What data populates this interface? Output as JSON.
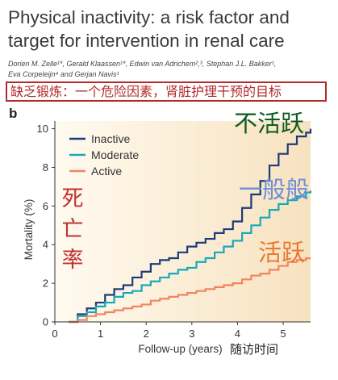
{
  "title": {
    "line1": "Physical inactivity: a risk factor and",
    "line2": "target for intervention in renal care"
  },
  "authors": {
    "line1": "Dorien M. Zelle¹*, Gerald Klaassen¹*, Edwin van Adrichem²,³, Stephan J.L. Bakker¹,",
    "line2": "Eva Corpeleijn⁴ and Gerjan Navis¹"
  },
  "banner_cn": "缺乏锻炼：一个危险因素，肾脏护理干预的目标",
  "panel_letter": "b",
  "annotations": {
    "inactive_cn": "不活跃",
    "moderate_cn": "一般般",
    "active_cn": "活跃",
    "mortality_cn": [
      "死",
      "亡",
      "率"
    ],
    "followup_cn": "随访时间"
  },
  "colors": {
    "inactive": "#1c3b7a",
    "moderate": "#18a9b8",
    "active": "#f08462",
    "plot_bg_left": "#fffaf0",
    "plot_bg_right": "#f7e2bf",
    "banner_border": "#b22a2a"
  },
  "chart_data": {
    "type": "line",
    "xlabel": "Follow-up (years)",
    "ylabel": "Mortality (%)",
    "xlim": [
      0,
      5.6
    ],
    "ylim": [
      0,
      10.4
    ],
    "xticks": [
      0,
      1,
      2,
      3,
      4,
      5
    ],
    "yticks": [
      0,
      2,
      4,
      6,
      8,
      10
    ],
    "grid": false,
    "legend_position": "top-left",
    "series": [
      {
        "name": "Inactive",
        "x": [
          0.3,
          0.5,
          0.7,
          0.9,
          1.1,
          1.3,
          1.5,
          1.7,
          1.9,
          2.1,
          2.3,
          2.5,
          2.7,
          2.9,
          3.1,
          3.3,
          3.5,
          3.7,
          3.9,
          4.1,
          4.3,
          4.5,
          4.7,
          4.9,
          5.1,
          5.3,
          5.5,
          5.6
        ],
        "y": [
          0.0,
          0.4,
          0.7,
          1.0,
          1.4,
          1.7,
          1.9,
          2.3,
          2.6,
          3.0,
          3.2,
          3.3,
          3.6,
          3.9,
          4.1,
          4.3,
          4.6,
          4.8,
          5.2,
          5.9,
          6.6,
          7.3,
          8.1,
          8.7,
          9.2,
          9.6,
          9.8,
          10.0
        ]
      },
      {
        "name": "Moderate",
        "x": [
          0.3,
          0.5,
          0.7,
          0.9,
          1.1,
          1.3,
          1.5,
          1.7,
          1.9,
          2.1,
          2.3,
          2.5,
          2.7,
          2.9,
          3.1,
          3.3,
          3.5,
          3.7,
          3.9,
          4.1,
          4.3,
          4.5,
          4.7,
          4.9,
          5.1,
          5.3,
          5.5,
          5.6
        ],
        "y": [
          0.0,
          0.3,
          0.5,
          0.8,
          1.0,
          1.3,
          1.5,
          1.6,
          1.9,
          2.1,
          2.3,
          2.5,
          2.7,
          2.8,
          3.1,
          3.3,
          3.6,
          3.9,
          4.2,
          4.6,
          5.0,
          5.4,
          5.8,
          6.1,
          6.3,
          6.5,
          6.7,
          6.8
        ]
      },
      {
        "name": "Active",
        "x": [
          0.3,
          0.5,
          0.7,
          0.9,
          1.1,
          1.3,
          1.5,
          1.7,
          1.9,
          2.1,
          2.3,
          2.5,
          2.7,
          2.9,
          3.1,
          3.3,
          3.5,
          3.7,
          3.9,
          4.1,
          4.3,
          4.5,
          4.7,
          4.9,
          5.1,
          5.3,
          5.5,
          5.6
        ],
        "y": [
          0.0,
          0.1,
          0.3,
          0.4,
          0.5,
          0.6,
          0.7,
          0.8,
          0.9,
          1.1,
          1.2,
          1.3,
          1.4,
          1.5,
          1.6,
          1.7,
          1.8,
          1.9,
          2.0,
          2.2,
          2.4,
          2.5,
          2.7,
          2.9,
          3.1,
          3.2,
          3.3,
          3.3
        ]
      }
    ]
  }
}
